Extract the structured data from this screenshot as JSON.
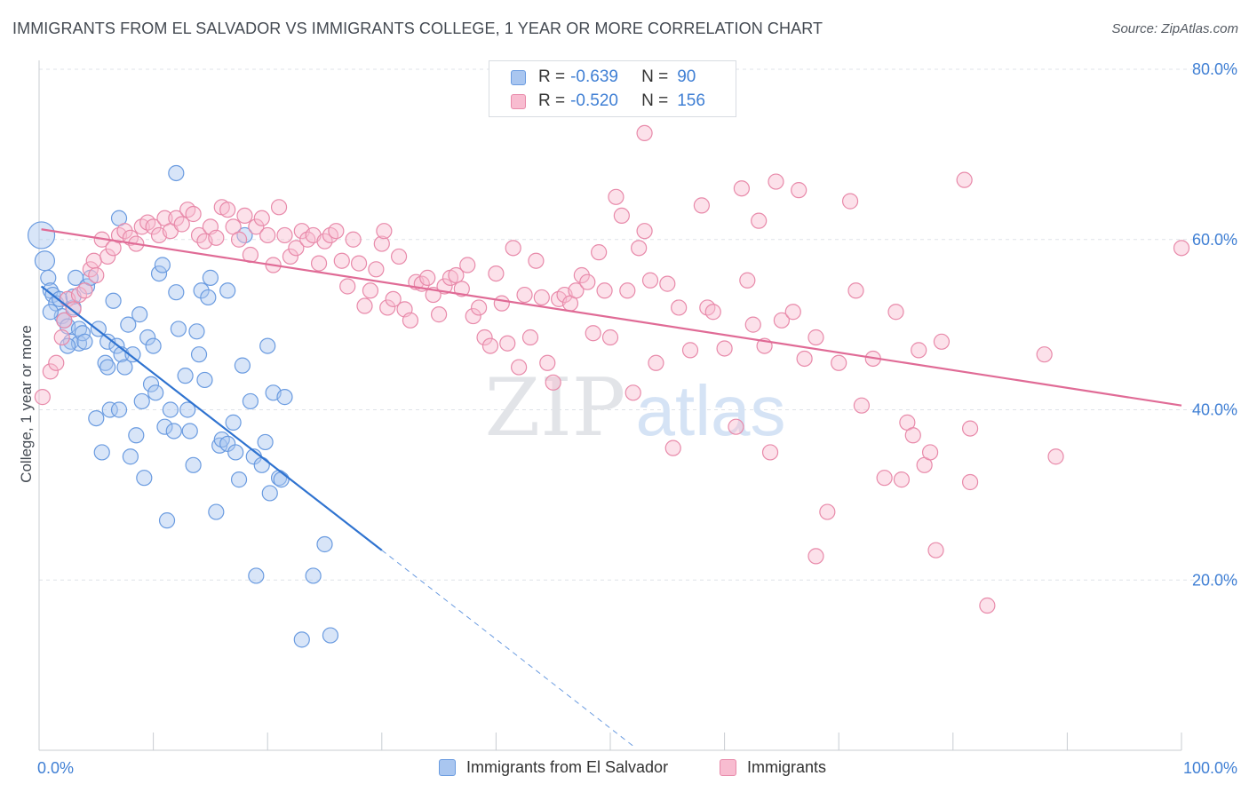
{
  "header": {
    "title": "IMMIGRANTS FROM EL SALVADOR VS IMMIGRANTS COLLEGE, 1 YEAR OR MORE CORRELATION CHART",
    "source": "Source: ZipAtlas.com"
  },
  "watermark": {
    "zip": "ZIP",
    "atlas": "atlas"
  },
  "legend": {
    "rows": [
      {
        "r_label": "R = ",
        "r_value": "-0.639",
        "n_label": "N = ",
        "n_value": "90",
        "color": "#a9c6f0",
        "border": "#6a9be0"
      },
      {
        "r_label": "R = ",
        "r_value": "-0.520",
        "n_label": "N = ",
        "n_value": "156",
        "color": "#f8bcd0",
        "border": "#e88aaa"
      }
    ]
  },
  "chart_data": {
    "type": "scatter",
    "title": "IMMIGRANTS FROM EL SALVADOR VS IMMIGRANTS COLLEGE, 1 YEAR OR MORE CORRELATION CHART",
    "xlabel": "",
    "ylabel": "College, 1 year or more",
    "xlim": [
      0,
      100
    ],
    "ylim": [
      0,
      80
    ],
    "x_tick_labels": [
      "0.0%",
      "100.0%"
    ],
    "y_ticks": [
      20,
      40,
      60,
      80
    ],
    "y_tick_labels": [
      "20.0%",
      "40.0%",
      "60.0%",
      "80.0%"
    ],
    "grid": true,
    "legend_position": "top-center",
    "series": [
      {
        "name": "Immigrants from El Salvador",
        "color": "#6a9be0",
        "fill": "#a9c6f0",
        "trend": {
          "x": [
            0.2,
            30
          ],
          "y": [
            54.5,
            23.5
          ],
          "dashed_to": {
            "x": 52,
            "y": 0.5
          }
        },
        "points": [
          [
            0.2,
            60.5
          ],
          [
            0.5,
            57.5
          ],
          [
            0.8,
            55.5
          ],
          [
            1,
            54
          ],
          [
            1.2,
            53.5
          ],
          [
            1.5,
            52.5
          ],
          [
            2,
            51
          ],
          [
            2.2,
            50.5
          ],
          [
            2.5,
            49.8
          ],
          [
            2.8,
            48
          ],
          [
            3,
            52
          ],
          [
            3.2,
            55.5
          ],
          [
            3.5,
            49.5
          ],
          [
            3.5,
            47.8
          ],
          [
            3.8,
            49
          ],
          [
            4,
            48
          ],
          [
            4.2,
            54.5
          ],
          [
            4.5,
            55.5
          ],
          [
            1.8,
            53
          ],
          [
            2.5,
            47.5
          ],
          [
            5,
            39
          ],
          [
            5.2,
            49.5
          ],
          [
            5.5,
            35
          ],
          [
            5.8,
            45.5
          ],
          [
            6,
            48
          ],
          [
            6.2,
            40
          ],
          [
            6.5,
            52.8
          ],
          [
            6.8,
            47.5
          ],
          [
            7,
            40
          ],
          [
            7.2,
            46.5
          ],
          [
            7.5,
            45
          ],
          [
            7.8,
            50
          ],
          [
            8,
            34.5
          ],
          [
            8.2,
            46.5
          ],
          [
            8.5,
            37
          ],
          [
            8.8,
            51.2
          ],
          [
            9,
            41
          ],
          [
            9.2,
            32
          ],
          [
            9.5,
            48.5
          ],
          [
            9.8,
            43
          ],
          [
            10,
            47.5
          ],
          [
            10.2,
            42
          ],
          [
            10.5,
            56
          ],
          [
            10.8,
            57
          ],
          [
            11,
            38
          ],
          [
            11.2,
            27
          ],
          [
            11.5,
            40
          ],
          [
            11.8,
            37.5
          ],
          [
            12,
            53.8
          ],
          [
            12.2,
            49.5
          ],
          [
            12,
            67.8
          ],
          [
            12.8,
            44
          ],
          [
            13,
            40
          ],
          [
            13.2,
            37.5
          ],
          [
            13.5,
            33.5
          ],
          [
            13.8,
            49.2
          ],
          [
            14,
            46.5
          ],
          [
            14.2,
            54
          ],
          [
            14.5,
            43.5
          ],
          [
            14.8,
            53.2
          ],
          [
            15,
            55.5
          ],
          [
            15.5,
            28
          ],
          [
            15.8,
            35.8
          ],
          [
            16,
            36.5
          ],
          [
            16.5,
            36
          ],
          [
            16.5,
            54
          ],
          [
            17,
            38.5
          ],
          [
            17.2,
            35
          ],
          [
            17.5,
            31.8
          ],
          [
            17.8,
            45.2
          ],
          [
            18,
            60.5
          ],
          [
            18.5,
            41
          ],
          [
            18.8,
            34.5
          ],
          [
            19,
            20.5
          ],
          [
            19.5,
            33.5
          ],
          [
            19.8,
            36.2
          ],
          [
            20,
            47.5
          ],
          [
            20.2,
            30.2
          ],
          [
            20.5,
            42
          ],
          [
            21,
            32
          ],
          [
            21.2,
            31.8
          ],
          [
            21.5,
            41.5
          ],
          [
            23,
            13
          ],
          [
            24,
            20.5
          ],
          [
            25,
            24.2
          ],
          [
            25.5,
            13.5
          ],
          [
            7,
            62.5
          ],
          [
            3,
            53.3
          ],
          [
            1,
            51.5
          ],
          [
            6,
            45
          ]
        ]
      },
      {
        "name": "Immigrants",
        "color": "#e88aaa",
        "fill": "#f8bcd0",
        "trend": {
          "x": [
            0.2,
            100
          ],
          "y": [
            61.2,
            40.5
          ]
        },
        "points": [
          [
            0.3,
            41.5
          ],
          [
            1,
            44.5
          ],
          [
            1.5,
            45.5
          ],
          [
            2,
            48.5
          ],
          [
            2.2,
            50.5
          ],
          [
            2.5,
            53
          ],
          [
            3,
            51.8
          ],
          [
            3.5,
            53.5
          ],
          [
            4,
            54
          ],
          [
            4.5,
            56.5
          ],
          [
            4.8,
            57.5
          ],
          [
            5,
            55.8
          ],
          [
            5.5,
            60
          ],
          [
            6,
            58
          ],
          [
            6.5,
            59
          ],
          [
            7,
            60.5
          ],
          [
            7.5,
            61
          ],
          [
            8,
            60.2
          ],
          [
            8.5,
            59.5
          ],
          [
            9,
            61.5
          ],
          [
            9.5,
            62
          ],
          [
            10,
            61.5
          ],
          [
            10.5,
            60.5
          ],
          [
            11,
            62.5
          ],
          [
            11.5,
            61
          ],
          [
            12,
            62.5
          ],
          [
            12.5,
            61.8
          ],
          [
            13,
            63.5
          ],
          [
            13.5,
            63
          ],
          [
            14,
            60.5
          ],
          [
            14.5,
            59.8
          ],
          [
            15,
            61.5
          ],
          [
            15.5,
            60.2
          ],
          [
            16,
            63.8
          ],
          [
            16.5,
            63.5
          ],
          [
            17,
            61.5
          ],
          [
            17.5,
            60
          ],
          [
            18,
            62.8
          ],
          [
            18.5,
            58.2
          ],
          [
            19,
            61.5
          ],
          [
            19.5,
            62.5
          ],
          [
            20,
            60.5
          ],
          [
            20.5,
            57
          ],
          [
            21,
            63.8
          ],
          [
            21.5,
            60.5
          ],
          [
            22,
            58
          ],
          [
            22.5,
            59
          ],
          [
            23,
            61
          ],
          [
            23.5,
            60
          ],
          [
            24,
            60.5
          ],
          [
            24.5,
            57.2
          ],
          [
            25,
            59.8
          ],
          [
            25.5,
            60.5
          ],
          [
            26,
            61
          ],
          [
            26.5,
            57.5
          ],
          [
            27,
            54.5
          ],
          [
            27.5,
            60
          ],
          [
            28,
            57.2
          ],
          [
            28.5,
            52.2
          ],
          [
            29,
            54
          ],
          [
            29.5,
            56.5
          ],
          [
            30,
            59.5
          ],
          [
            30.2,
            61
          ],
          [
            30.5,
            52
          ],
          [
            31,
            53
          ],
          [
            31.5,
            58
          ],
          [
            32,
            51.8
          ],
          [
            32.5,
            50.5
          ],
          [
            33,
            55
          ],
          [
            33.5,
            54.8
          ],
          [
            34,
            55.5
          ],
          [
            34.5,
            53.5
          ],
          [
            35,
            51.2
          ],
          [
            35.5,
            54.5
          ],
          [
            36,
            55.5
          ],
          [
            36.5,
            55.8
          ],
          [
            37,
            54.2
          ],
          [
            37.5,
            57
          ],
          [
            38,
            51
          ],
          [
            38.5,
            52
          ],
          [
            39,
            48.5
          ],
          [
            39.5,
            47.5
          ],
          [
            40,
            56
          ],
          [
            40.5,
            52.5
          ],
          [
            41,
            47.8
          ],
          [
            41.5,
            59
          ],
          [
            42,
            45
          ],
          [
            42.5,
            53.5
          ],
          [
            43,
            48.5
          ],
          [
            43.5,
            57.5
          ],
          [
            44,
            53.2
          ],
          [
            44.5,
            45.5
          ],
          [
            45,
            43.2
          ],
          [
            45.5,
            53
          ],
          [
            46,
            53.5
          ],
          [
            46.5,
            52.5
          ],
          [
            47,
            54
          ],
          [
            47.5,
            55.8
          ],
          [
            48,
            55
          ],
          [
            48.5,
            49
          ],
          [
            49,
            58.5
          ],
          [
            49.5,
            54
          ],
          [
            50,
            48.5
          ],
          [
            50.5,
            65
          ],
          [
            51,
            62.8
          ],
          [
            51.5,
            54
          ],
          [
            52,
            42
          ],
          [
            52.5,
            59
          ],
          [
            53,
            61
          ],
          [
            53.5,
            55.2
          ],
          [
            54,
            45.5
          ],
          [
            55,
            54.8
          ],
          [
            55.5,
            35.5
          ],
          [
            56,
            52
          ],
          [
            57,
            47
          ],
          [
            58,
            64
          ],
          [
            58.5,
            52
          ],
          [
            59,
            51.5
          ],
          [
            60,
            47.2
          ],
          [
            61,
            38
          ],
          [
            61.5,
            66
          ],
          [
            62,
            55.2
          ],
          [
            62.5,
            50
          ],
          [
            63,
            62.2
          ],
          [
            63.5,
            47.5
          ],
          [
            64,
            35
          ],
          [
            64.5,
            66.8
          ],
          [
            65,
            50.5
          ],
          [
            66,
            51.5
          ],
          [
            66.5,
            65.8
          ],
          [
            67,
            46
          ],
          [
            68,
            48.5
          ],
          [
            69,
            28
          ],
          [
            70,
            45.5
          ],
          [
            71,
            64.5
          ],
          [
            71.5,
            54
          ],
          [
            72,
            40.5
          ],
          [
            73,
            46
          ],
          [
            74,
            32
          ],
          [
            75,
            51.5
          ],
          [
            75.5,
            31.8
          ],
          [
            76,
            38.5
          ],
          [
            76.5,
            37
          ],
          [
            77,
            47
          ],
          [
            77.5,
            33.5
          ],
          [
            78,
            35
          ],
          [
            78.5,
            23.5
          ],
          [
            79,
            48
          ],
          [
            81,
            67
          ],
          [
            81.5,
            31.5
          ],
          [
            81.5,
            37.8
          ],
          [
            83,
            17
          ],
          [
            88,
            46.5
          ],
          [
            89,
            34.5
          ],
          [
            100,
            59
          ],
          [
            53,
            72.5
          ],
          [
            68,
            22.8
          ]
        ]
      }
    ]
  },
  "bottom_legend": [
    {
      "label": "Immigrants from El Salvador",
      "color": "#a9c6f0",
      "border": "#6a9be0"
    },
    {
      "label": "Immigrants",
      "color": "#f8bcd0",
      "border": "#e88aaa"
    }
  ]
}
